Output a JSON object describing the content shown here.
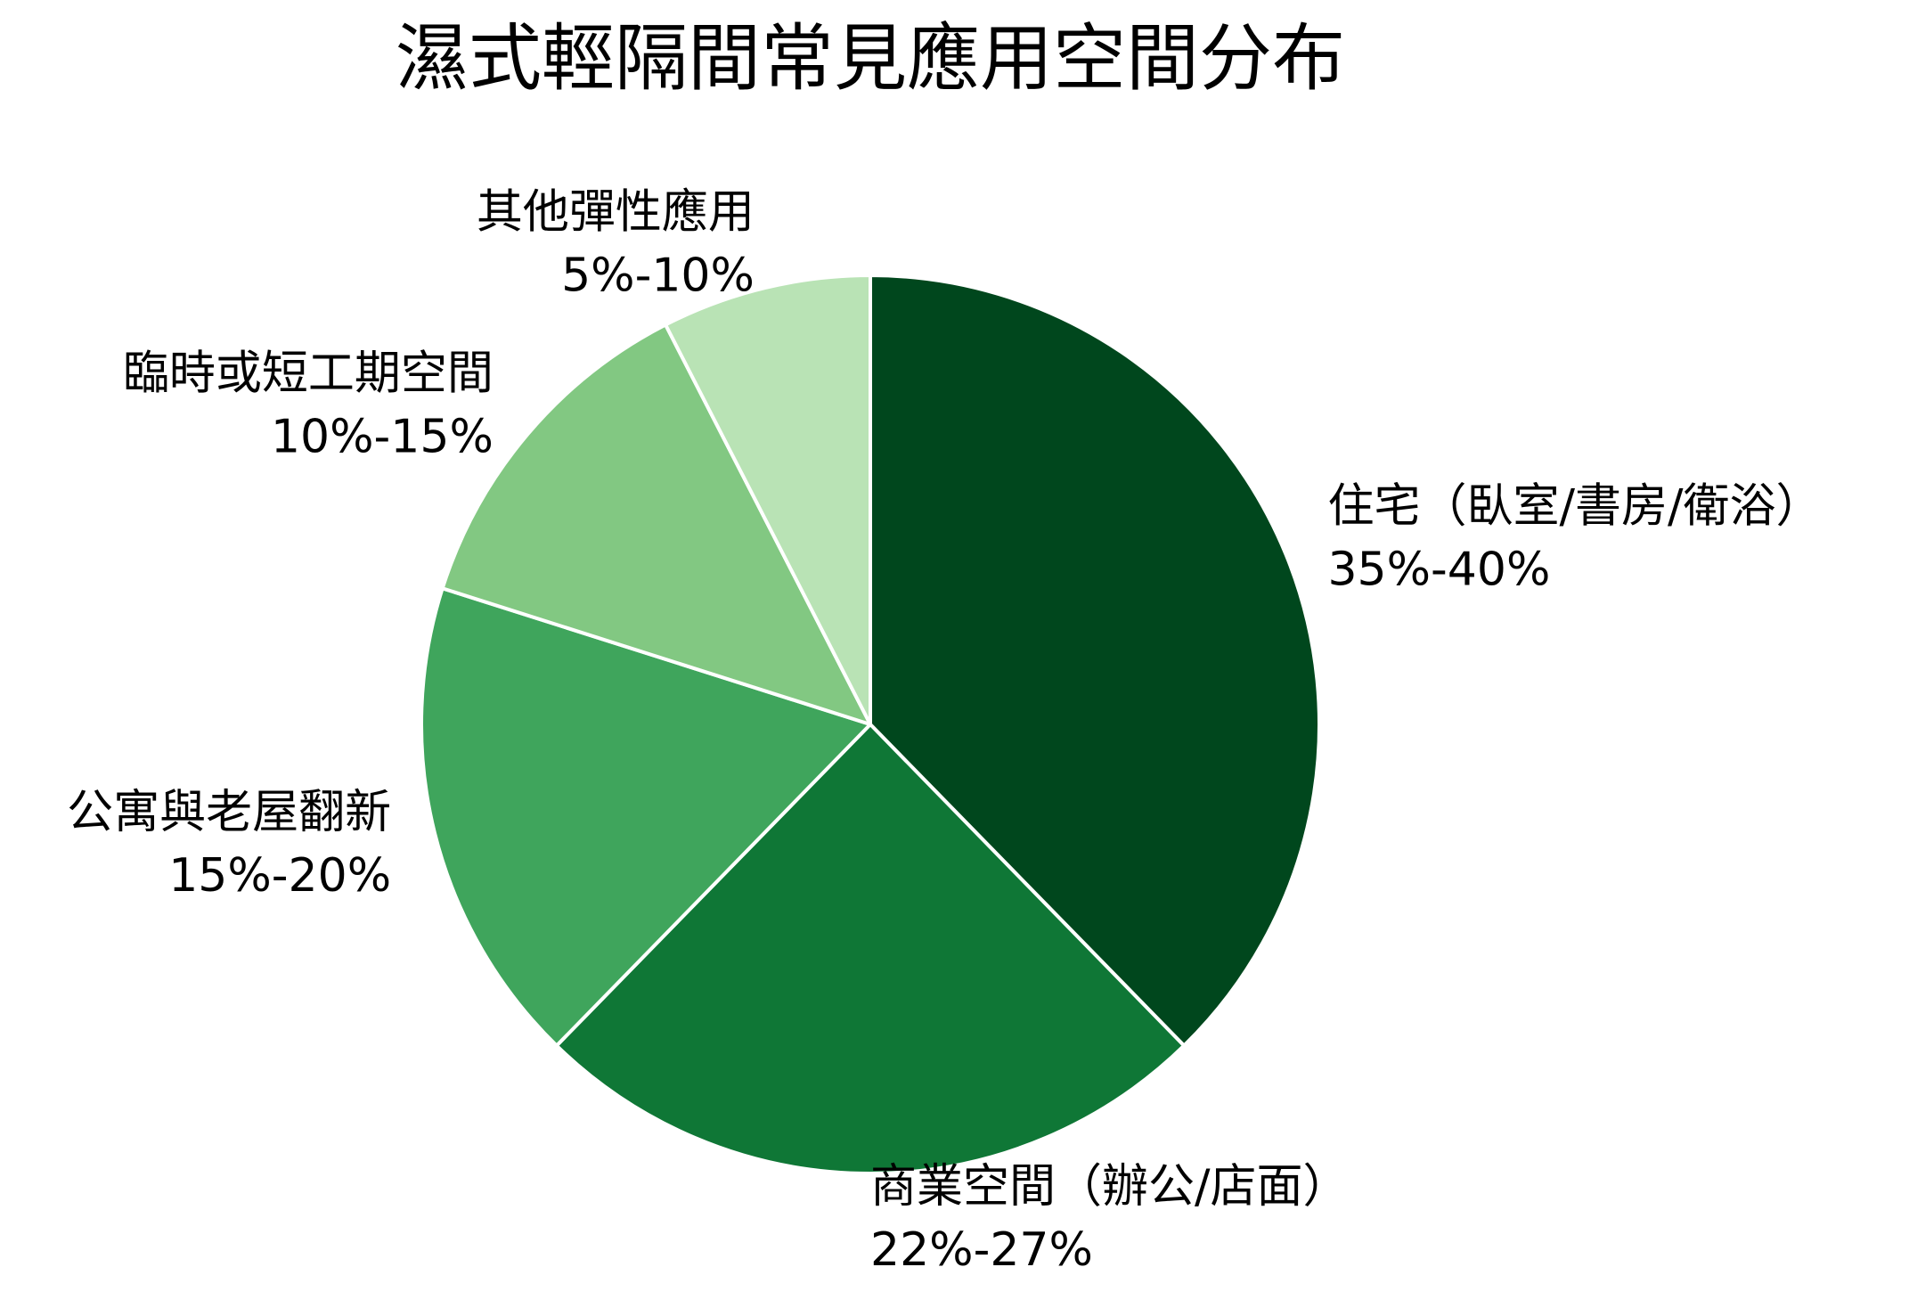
{
  "chart_data": {
    "type": "pie",
    "title": "濕式輕隔間常見應用空間分布",
    "labels": [
      "住宅（臥室/書房/衛浴）",
      "商業空間（辦公/店面）",
      "公寓與老屋翻新",
      "臨時或短工期空間",
      "其他彈性應用"
    ],
    "ranges": [
      "35%-40%",
      "22%-27%",
      "15%-20%",
      "10%-15%",
      "5%-10%"
    ],
    "values": [
      37.5,
      24.5,
      17.5,
      12.5,
      7.5
    ],
    "colors": [
      "#00471d",
      "#0f7736",
      "#3fa55c",
      "#82c882",
      "#b9e3b5"
    ],
    "edge_color": "#ffffff",
    "direction": "clockwise",
    "start_position": "top",
    "legend": false
  }
}
